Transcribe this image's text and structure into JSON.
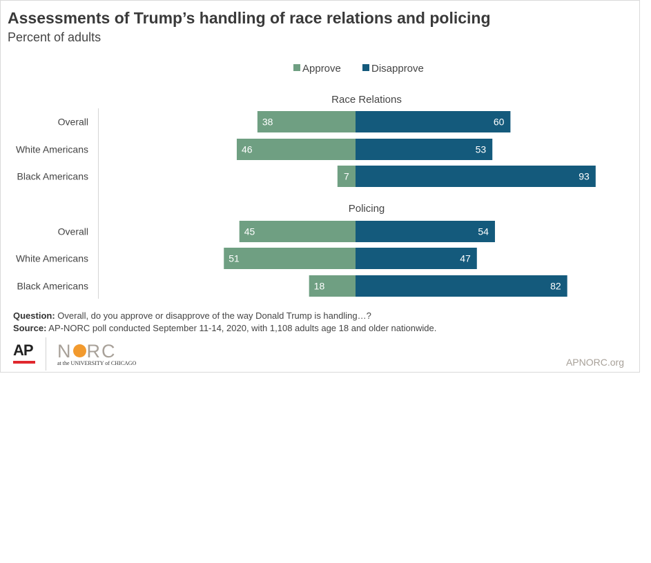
{
  "header": {
    "title": "Assessments of Trump’s handling of race relations and policing",
    "subtitle": "Percent of adults"
  },
  "colors": {
    "approve": "#6f9f82",
    "disapprove": "#145a7c"
  },
  "chart_data": {
    "type": "bar",
    "orientation": "horizontal-diverging",
    "legend_position": "top-center",
    "series_names": [
      "Approve",
      "Disapprove"
    ],
    "groups": [
      {
        "name": "Race Relations",
        "rows": [
          {
            "label": "Overall",
            "approve": 38,
            "disapprove": 60
          },
          {
            "label": "White Americans",
            "approve": 46,
            "disapprove": 53
          },
          {
            "label": "Black Americans",
            "approve": 7,
            "disapprove": 93
          }
        ]
      },
      {
        "name": "Policing",
        "rows": [
          {
            "label": "Overall",
            "approve": 45,
            "disapprove": 54
          },
          {
            "label": "White Americans",
            "approve": 51,
            "disapprove": 47
          },
          {
            "label": "Black Americans",
            "approve": 18,
            "disapprove": 82
          }
        ]
      }
    ]
  },
  "footnote": {
    "question_label": "Question:",
    "question_text": " Overall, do you approve or disapprove of the way Donald Trump is handling…?",
    "source_label": "Source:",
    "source_text": " AP-NORC poll conducted September 11-14, 2020, with 1,108 adults age 18 and older nationwide."
  },
  "logos": {
    "ap": "AP",
    "norc_n": "N",
    "norc_rc": "RC",
    "norc_sub": "at the UNIVERSITY of CHICAGO"
  },
  "site": "APNORC.org"
}
